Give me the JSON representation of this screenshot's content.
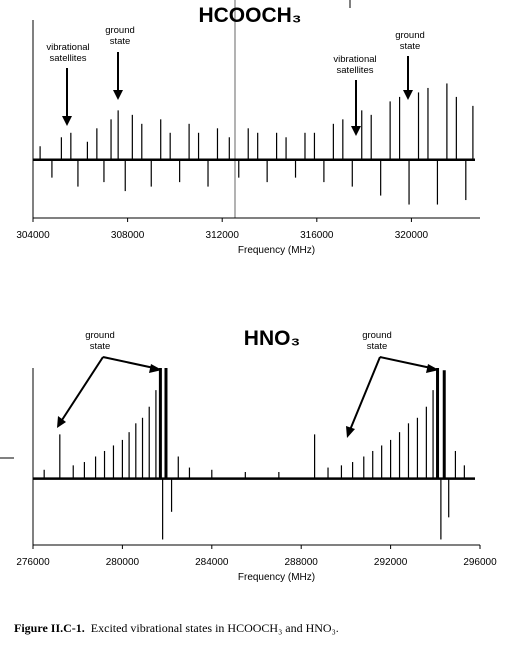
{
  "chart_data": [
    {
      "type": "spectrum",
      "title": "HCOOCH₃",
      "x_label": "Frequency (MHz)",
      "xlim": [
        304000,
        322900
      ],
      "ylim": [
        -0.65,
        1
      ],
      "xticks": [
        304000,
        308000,
        312000,
        316000,
        320000
      ],
      "color": "#000000",
      "annotations": [
        [
          "vibrational",
          "satellites"
        ],
        [
          "ground",
          "state"
        ],
        [
          "vibrational",
          "satellites"
        ],
        [
          "ground",
          "state"
        ]
      ],
      "x": [
        304300,
        304800,
        305200,
        305600,
        305900,
        306300,
        306700,
        307000,
        307300,
        307600,
        307900,
        308200,
        308600,
        309000,
        309400,
        309800,
        310200,
        310600,
        311000,
        311400,
        311800,
        312300,
        312700,
        313100,
        313500,
        313900,
        314300,
        314700,
        315100,
        315500,
        315900,
        316300,
        316700,
        317100,
        317500,
        317900,
        318300,
        318700,
        319100,
        319500,
        319900,
        320300,
        320700,
        321100,
        321500,
        321900,
        322300,
        322600
      ],
      "values": [
        0.15,
        -0.2,
        0.25,
        0.3,
        -0.3,
        0.2,
        0.35,
        -0.25,
        0.45,
        0.55,
        -0.35,
        0.5,
        0.4,
        -0.3,
        0.45,
        0.3,
        -0.25,
        0.4,
        0.3,
        -0.3,
        0.35,
        0.25,
        -0.2,
        0.35,
        0.3,
        -0.25,
        0.3,
        0.25,
        -0.2,
        0.3,
        0.3,
        -0.25,
        0.4,
        0.45,
        -0.3,
        0.55,
        0.5,
        -0.4,
        0.65,
        0.7,
        -0.5,
        0.75,
        0.8,
        -0.5,
        0.85,
        0.7,
        -0.45,
        0.6
      ]
    },
    {
      "type": "spectrum",
      "title": "HNO₃",
      "x_label": "Frequency (MHz)",
      "xlim": [
        276000,
        296000
      ],
      "ylim": [
        -0.6,
        1
      ],
      "xticks": [
        276000,
        280000,
        284000,
        288000,
        292000,
        296000
      ],
      "color": "#000000",
      "annotations": [
        [
          "ground",
          "state"
        ],
        [
          "ground",
          "state"
        ]
      ],
      "x": [
        276500,
        277200,
        277800,
        278300,
        278800,
        279200,
        279600,
        280000,
        280300,
        280600,
        280900,
        281200,
        281500,
        281700,
        281800,
        281950,
        282200,
        282500,
        283000,
        284000,
        285500,
        287000,
        288600,
        289200,
        289800,
        290300,
        290800,
        291200,
        291600,
        292000,
        292400,
        292800,
        293200,
        293600,
        293900,
        294100,
        294250,
        294400,
        294600,
        294900,
        295300
      ],
      "values": [
        0.08,
        0.4,
        0.12,
        0.15,
        0.2,
        0.25,
        0.3,
        0.35,
        0.42,
        0.5,
        0.55,
        0.65,
        0.8,
        1,
        -0.55,
        1,
        -0.3,
        0.2,
        0.1,
        0.08,
        0.06,
        0.06,
        0.4,
        0.1,
        0.12,
        0.15,
        0.2,
        0.25,
        0.3,
        0.35,
        0.42,
        0.5,
        0.55,
        0.65,
        0.8,
        1,
        -0.55,
        0.98,
        -0.35,
        0.25,
        0.12
      ]
    }
  ],
  "caption": {
    "label": "Figure II.C-1.",
    "text": "Excited vibrational states in HCOOCH₃ and HNO₃."
  }
}
